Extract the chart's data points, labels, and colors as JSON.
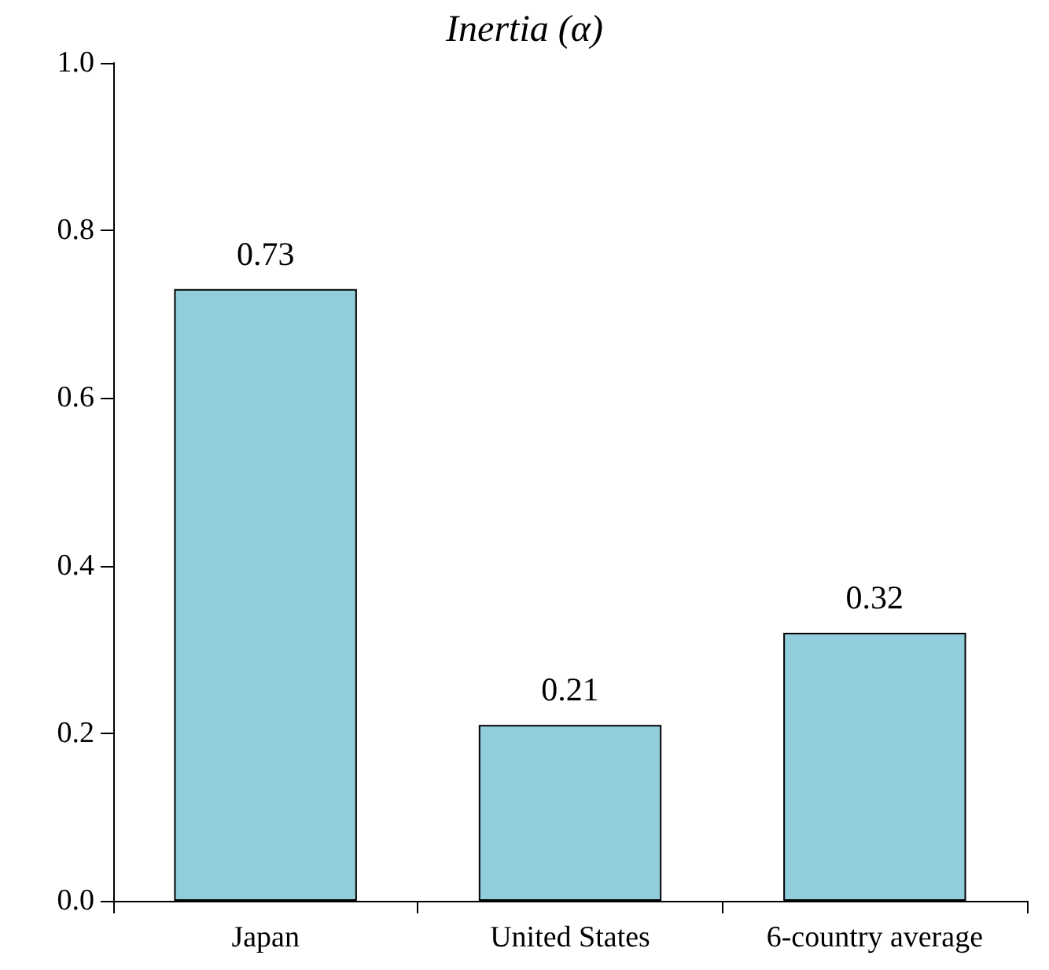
{
  "chart_data": {
    "type": "bar",
    "title": "Inertia (α)",
    "categories": [
      "Japan",
      "United States",
      "6-country average"
    ],
    "values": [
      0.73,
      0.21,
      0.32
    ],
    "color": "#92cddc",
    "ylim": [
      0,
      1
    ],
    "yticks": [
      {
        "value": 0,
        "label": "0.0"
      },
      0.2,
      0.4,
      0.6,
      0.8,
      {
        "value": 1,
        "label": "1.0"
      }
    ],
    "data_labels": true
  }
}
